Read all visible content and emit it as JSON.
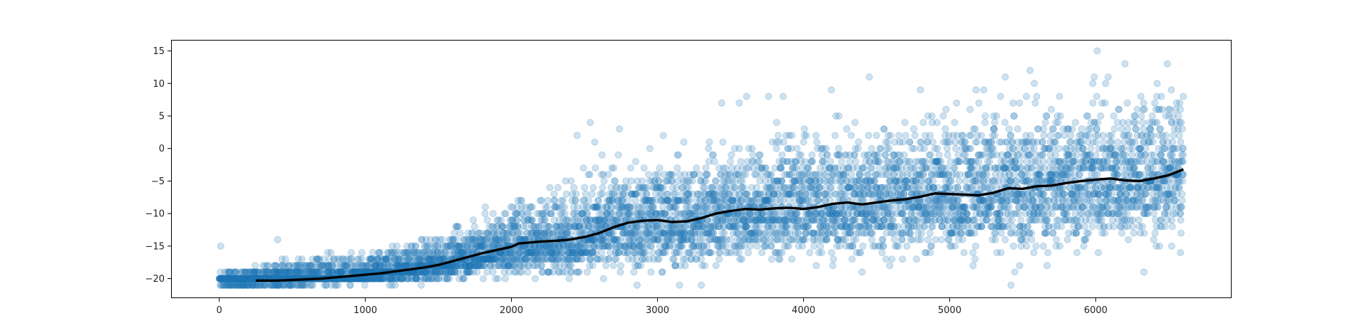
{
  "chart_data": {
    "type": "scatter",
    "title": "",
    "xlabel": "",
    "ylabel": "",
    "xlim": [
      -330,
      6930
    ],
    "ylim": [
      -23,
      16.7
    ],
    "x_ticks": [
      0,
      1000,
      2000,
      3000,
      4000,
      5000,
      6000
    ],
    "y_ticks": [
      15,
      10,
      5,
      0,
      -5,
      -10,
      -15,
      -20
    ],
    "x_tick_labels": [
      "0",
      "1000",
      "2000",
      "3000",
      "4000",
      "5000",
      "6000"
    ],
    "y_tick_labels": [
      "15",
      "10",
      "5",
      "0",
      "−5",
      "−10",
      "−15",
      "−20"
    ],
    "grid": false,
    "legend": "none",
    "colors": {
      "points": "#1f77b4",
      "trend": "#000000"
    },
    "point_alpha": 0.22,
    "scatter_summary": {
      "x_range": [
        0,
        6600
      ],
      "n_points_approx": 6600,
      "integer_y_values": true,
      "bands": [
        {
          "x": 0,
          "min": -21,
          "max": -19
        },
        {
          "x": 500,
          "min": -21,
          "max": -16
        },
        {
          "x": 1000,
          "min": -21,
          "max": -15
        },
        {
          "x": 1500,
          "min": -21,
          "max": -12
        },
        {
          "x": 2000,
          "min": -21,
          "max": -6
        },
        {
          "x": 2500,
          "min": -21,
          "max": -1
        },
        {
          "x": 3000,
          "min": -21,
          "max": 1
        },
        {
          "x": 3500,
          "min": -20,
          "max": 4
        },
        {
          "x": 4000,
          "min": -19,
          "max": 6
        },
        {
          "x": 4500,
          "min": -19,
          "max": 8
        },
        {
          "x": 5000,
          "min": -19,
          "max": 10
        },
        {
          "x": 5500,
          "min": -20,
          "max": 11
        },
        {
          "x": 6000,
          "min": -19,
          "max": 12
        },
        {
          "x": 6600,
          "min": -16,
          "max": 13
        }
      ]
    },
    "outliers": [
      {
        "x": 6010,
        "y": 15
      },
      {
        "x": 6490,
        "y": 13
      },
      {
        "x": 6200,
        "y": 13
      },
      {
        "x": 5550,
        "y": 12
      },
      {
        "x": 4450,
        "y": 11
      },
      {
        "x": 5380,
        "y": 11
      },
      {
        "x": 5990,
        "y": 11
      },
      {
        "x": 6420,
        "y": 10
      },
      {
        "x": 5580,
        "y": 10
      },
      {
        "x": 5980,
        "y": 10
      },
      {
        "x": 4800,
        "y": 9
      },
      {
        "x": 4190,
        "y": 9
      },
      {
        "x": 5180,
        "y": 9
      },
      {
        "x": 3610,
        "y": 8
      },
      {
        "x": 3760,
        "y": 8
      },
      {
        "x": 3860,
        "y": 8
      },
      {
        "x": 6310,
        "y": 8
      },
      {
        "x": 6600,
        "y": 8
      },
      {
        "x": 3440,
        "y": 7
      },
      {
        "x": 3560,
        "y": 7
      },
      {
        "x": 5200,
        "y": 7
      },
      {
        "x": 2540,
        "y": 4
      },
      {
        "x": 2450,
        "y": 2
      },
      {
        "x": 2740,
        "y": 3
      },
      {
        "x": 2570,
        "y": 1
      },
      {
        "x": 2620,
        "y": -1
      },
      {
        "x": 3040,
        "y": 2
      },
      {
        "x": 3180,
        "y": 1
      },
      {
        "x": 5420,
        "y": -21
      },
      {
        "x": 3150,
        "y": -21
      },
      {
        "x": 2860,
        "y": -21
      },
      {
        "x": 6330,
        "y": -19
      },
      {
        "x": 4200,
        "y": -18
      },
      {
        "x": 4400,
        "y": -19
      },
      {
        "x": 4590,
        "y": -18
      },
      {
        "x": 6580,
        "y": -16
      },
      {
        "x": 6520,
        "y": -15
      },
      {
        "x": 10,
        "y": -15
      },
      {
        "x": 400,
        "y": -14
      },
      {
        "x": 3300,
        "y": -21
      }
    ],
    "series": [
      {
        "type": "line",
        "x": [
          250,
          400,
          500,
          600,
          700,
          800,
          900,
          1000,
          1100,
          1200,
          1300,
          1400,
          1500,
          1600,
          1700,
          1800,
          1900,
          2000,
          2050,
          2100,
          2200,
          2300,
          2400,
          2500,
          2600,
          2700,
          2800,
          2900,
          3000,
          3100,
          3200,
          3300,
          3400,
          3500,
          3600,
          3700,
          3800,
          3900,
          4000,
          4100,
          4200,
          4300,
          4400,
          4500,
          4600,
          4700,
          4800,
          4900,
          5000,
          5100,
          5200,
          5300,
          5400,
          5500,
          5600,
          5700,
          5800,
          5900,
          6000,
          6100,
          6200,
          6300,
          6400,
          6500,
          6600
        ],
        "values": [
          -20.3,
          -20.3,
          -20.2,
          -20.1,
          -20.0,
          -19.8,
          -19.6,
          -19.4,
          -19.2,
          -18.9,
          -18.6,
          -18.3,
          -17.9,
          -17.3,
          -16.7,
          -16.1,
          -15.6,
          -15.1,
          -14.6,
          -14.5,
          -14.3,
          -14.2,
          -14.0,
          -13.6,
          -13.0,
          -12.1,
          -11.4,
          -11.1,
          -11.0,
          -11.3,
          -11.2,
          -10.7,
          -10.0,
          -9.6,
          -9.3,
          -9.4,
          -9.2,
          -9.1,
          -9.3,
          -9.0,
          -8.5,
          -8.3,
          -8.6,
          -8.3,
          -8.0,
          -7.8,
          -7.4,
          -6.9,
          -7.0,
          -7.1,
          -7.2,
          -6.8,
          -6.1,
          -6.2,
          -5.8,
          -5.7,
          -5.3,
          -5.0,
          -4.8,
          -4.6,
          -4.9,
          -5.0,
          -4.6,
          -4.1,
          -3.2
        ]
      }
    ]
  }
}
